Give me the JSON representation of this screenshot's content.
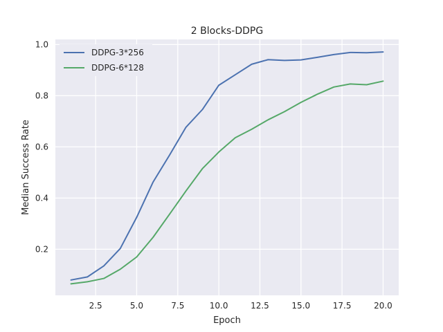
{
  "chart_data": {
    "type": "line",
    "title": "2 Blocks-DDPG",
    "xlabel": "Epoch",
    "ylabel": "Median Success Rate",
    "xlim": [
      0.05,
      20.95
    ],
    "ylim": [
      0.02,
      1.02
    ],
    "xticks": [
      2.5,
      5.0,
      7.5,
      10.0,
      12.5,
      15.0,
      17.5,
      20.0
    ],
    "xtick_labels": [
      "2.5",
      "5.0",
      "7.5",
      "10.0",
      "12.5",
      "15.0",
      "17.5",
      "20.0"
    ],
    "yticks": [
      0.2,
      0.4,
      0.6,
      0.8,
      1.0
    ],
    "ytick_labels": [
      "0.2",
      "0.4",
      "0.6",
      "0.8",
      "1.0"
    ],
    "grid": true,
    "legend_position": "top-left",
    "x": [
      1,
      2,
      3,
      4,
      5,
      6,
      7,
      8,
      9,
      10,
      11,
      12,
      13,
      14,
      15,
      16,
      17,
      18,
      19,
      20
    ],
    "series": [
      {
        "name": "DDPG-3*256",
        "color": "#4c72b0",
        "values": [
          0.08,
          0.092,
          0.135,
          0.203,
          0.325,
          0.463,
          0.568,
          0.677,
          0.746,
          0.841,
          0.882,
          0.923,
          0.941,
          0.938,
          0.94,
          0.95,
          0.961,
          0.969,
          0.968,
          0.971
        ]
      },
      {
        "name": "DDPG-6*128",
        "color": "#55a868",
        "values": [
          0.065,
          0.073,
          0.086,
          0.122,
          0.17,
          0.247,
          0.337,
          0.428,
          0.515,
          0.58,
          0.636,
          0.669,
          0.706,
          0.738,
          0.774,
          0.806,
          0.834,
          0.846,
          0.843,
          0.857
        ]
      }
    ]
  }
}
